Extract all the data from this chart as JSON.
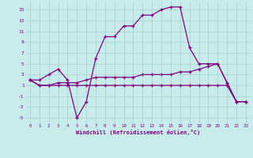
{
  "xlabel": "Windchill (Refroidissement éolien,°C)",
  "background_color": "#c8ecec",
  "grid_color": "#aad4d4",
  "line_color": "#800080",
  "xlim": [
    -0.5,
    23.5
  ],
  "ylim": [
    -6,
    16.5
  ],
  "xticks": [
    0,
    1,
    2,
    3,
    4,
    5,
    6,
    7,
    8,
    9,
    10,
    11,
    12,
    13,
    14,
    15,
    16,
    17,
    18,
    19,
    20,
    21,
    22,
    23
  ],
  "yticks": [
    -5,
    -3,
    -1,
    1,
    3,
    5,
    7,
    9,
    11,
    13,
    15
  ],
  "series1_x": [
    0,
    1,
    2,
    3,
    4,
    5,
    6,
    7,
    8,
    9,
    10,
    11,
    12,
    13,
    14,
    15,
    16,
    17,
    18,
    19,
    20,
    21,
    22,
    23
  ],
  "series1_y": [
    2,
    2,
    3,
    4,
    2,
    -5,
    -2,
    6,
    10,
    10,
    12,
    12,
    14,
    14,
    15,
    15.5,
    15.5,
    8,
    5,
    5,
    5,
    1.5,
    -2,
    -2
  ],
  "series2_x": [
    0,
    1,
    2,
    3,
    4,
    5,
    6,
    7,
    8,
    9,
    10,
    11,
    12,
    13,
    14,
    15,
    16,
    17,
    18,
    19,
    20,
    21,
    22,
    23
  ],
  "series2_y": [
    2,
    1,
    1,
    1.5,
    1.5,
    1.5,
    2,
    2.5,
    2.5,
    2.5,
    2.5,
    2.5,
    3,
    3,
    3,
    3,
    3.5,
    3.5,
    4,
    4.5,
    5,
    1.5,
    -2,
    -2
  ],
  "series3_x": [
    0,
    1,
    2,
    3,
    4,
    5,
    6,
    7,
    8,
    9,
    10,
    11,
    12,
    13,
    14,
    15,
    16,
    17,
    18,
    19,
    20,
    21,
    22,
    23
  ],
  "series3_y": [
    2,
    1,
    1,
    1,
    1,
    1,
    1,
    1,
    1,
    1,
    1,
    1,
    1,
    1,
    1,
    1,
    1,
    1,
    1,
    1,
    1,
    1,
    -2,
    -2
  ]
}
